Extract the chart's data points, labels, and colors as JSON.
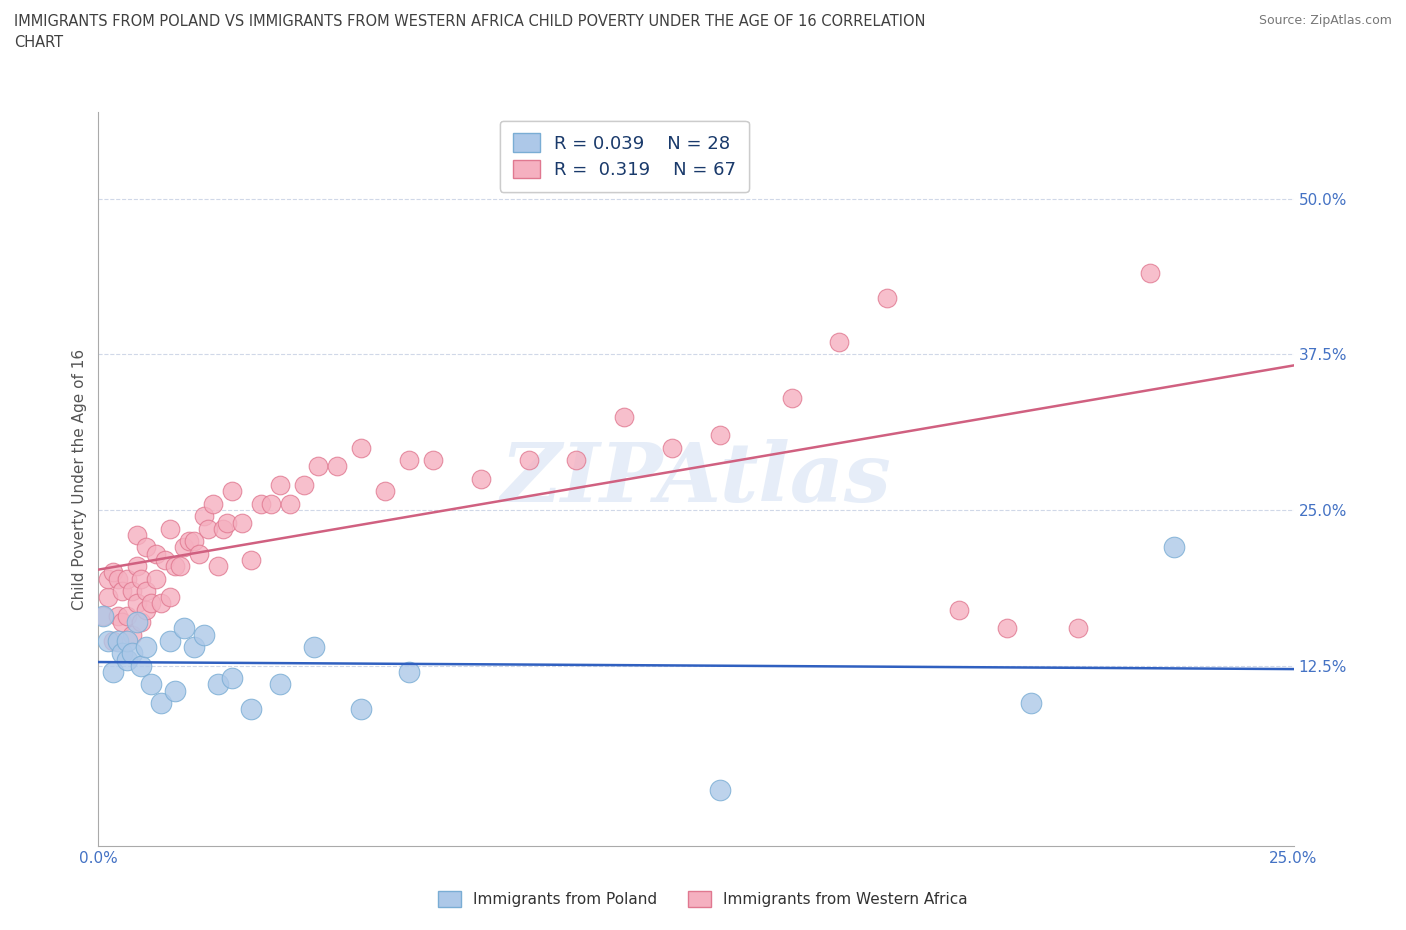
{
  "title_line1": "IMMIGRANTS FROM POLAND VS IMMIGRANTS FROM WESTERN AFRICA CHILD POVERTY UNDER THE AGE OF 16 CORRELATION",
  "title_line2": "CHART",
  "source": "Source: ZipAtlas.com",
  "ylabel": "Child Poverty Under the Age of 16",
  "watermark": "ZIPAtlas",
  "xlim": [
    0.0,
    0.25
  ],
  "ylim": [
    -0.02,
    0.57
  ],
  "xticks": [
    0.0,
    0.025,
    0.05,
    0.075,
    0.1,
    0.125,
    0.15,
    0.175,
    0.2,
    0.225,
    0.25
  ],
  "xticklabels": [
    "0.0%",
    "",
    "",
    "",
    "",
    "",
    "",
    "",
    "",
    "",
    "25.0%"
  ],
  "ytick_positions": [
    0.125,
    0.25,
    0.375,
    0.5
  ],
  "ytick_labels": [
    "12.5%",
    "25.0%",
    "37.5%",
    "50.0%"
  ],
  "poland_color": "#adc8e8",
  "poland_edge": "#7aadd4",
  "wa_color": "#f5b0c0",
  "wa_edge": "#e07890",
  "poland_line_color": "#3060c0",
  "wa_line_color": "#d06080",
  "R_poland": 0.039,
  "N_poland": 28,
  "R_wa": 0.319,
  "N_wa": 67,
  "legend_label_poland": "Immigrants from Poland",
  "legend_label_wa": "Immigrants from Western Africa",
  "grid_color": "#d0d8e8",
  "title_color": "#404040",
  "label_color": "#4472c4",
  "poland_x": [
    0.001,
    0.002,
    0.003,
    0.004,
    0.005,
    0.006,
    0.006,
    0.007,
    0.008,
    0.009,
    0.01,
    0.011,
    0.013,
    0.015,
    0.016,
    0.018,
    0.02,
    0.022,
    0.025,
    0.028,
    0.032,
    0.038,
    0.045,
    0.055,
    0.065,
    0.13,
    0.195,
    0.225
  ],
  "poland_y": [
    0.165,
    0.145,
    0.12,
    0.145,
    0.135,
    0.13,
    0.145,
    0.135,
    0.16,
    0.125,
    0.14,
    0.11,
    0.095,
    0.145,
    0.105,
    0.155,
    0.14,
    0.15,
    0.11,
    0.115,
    0.09,
    0.11,
    0.14,
    0.09,
    0.12,
    0.025,
    0.095,
    0.22
  ],
  "wa_x": [
    0.001,
    0.002,
    0.002,
    0.003,
    0.003,
    0.004,
    0.004,
    0.005,
    0.005,
    0.006,
    0.006,
    0.007,
    0.007,
    0.008,
    0.008,
    0.008,
    0.009,
    0.009,
    0.01,
    0.01,
    0.01,
    0.011,
    0.012,
    0.012,
    0.013,
    0.014,
    0.015,
    0.015,
    0.016,
    0.017,
    0.018,
    0.019,
    0.02,
    0.021,
    0.022,
    0.023,
    0.024,
    0.025,
    0.026,
    0.027,
    0.028,
    0.03,
    0.032,
    0.034,
    0.036,
    0.038,
    0.04,
    0.043,
    0.046,
    0.05,
    0.055,
    0.06,
    0.065,
    0.07,
    0.08,
    0.09,
    0.1,
    0.11,
    0.12,
    0.13,
    0.145,
    0.155,
    0.165,
    0.18,
    0.19,
    0.205,
    0.22
  ],
  "wa_y": [
    0.165,
    0.18,
    0.195,
    0.145,
    0.2,
    0.165,
    0.195,
    0.16,
    0.185,
    0.165,
    0.195,
    0.15,
    0.185,
    0.175,
    0.205,
    0.23,
    0.16,
    0.195,
    0.17,
    0.185,
    0.22,
    0.175,
    0.215,
    0.195,
    0.175,
    0.21,
    0.18,
    0.235,
    0.205,
    0.205,
    0.22,
    0.225,
    0.225,
    0.215,
    0.245,
    0.235,
    0.255,
    0.205,
    0.235,
    0.24,
    0.265,
    0.24,
    0.21,
    0.255,
    0.255,
    0.27,
    0.255,
    0.27,
    0.285,
    0.285,
    0.3,
    0.265,
    0.29,
    0.29,
    0.275,
    0.29,
    0.29,
    0.325,
    0.3,
    0.31,
    0.34,
    0.385,
    0.42,
    0.17,
    0.155,
    0.155,
    0.44
  ]
}
